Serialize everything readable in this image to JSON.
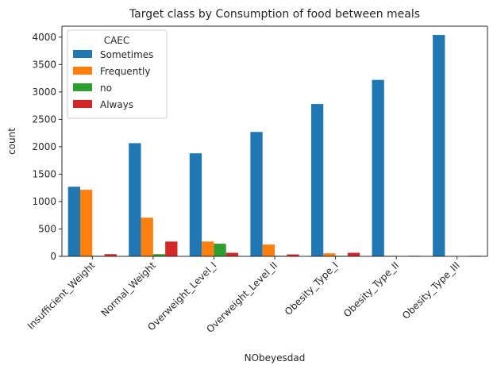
{
  "chart_data": {
    "type": "bar",
    "title": "Target class by Consumption of food between meals",
    "xlabel": "NObeyesdad",
    "ylabel": "count",
    "ylim": [
      0,
      4200
    ],
    "yticks": [
      0,
      500,
      1000,
      1500,
      2000,
      2500,
      3000,
      3500,
      4000
    ],
    "categories": [
      "Insufficient_Weight",
      "Normal_Weight",
      "Overweight_Level_I",
      "Overweight_Level_II",
      "Obesity_Type_I",
      "Obesity_Type_II",
      "Obesity_Type_III"
    ],
    "legend": {
      "title": "CAEC",
      "placement": "top-left"
    },
    "grid": false,
    "series": [
      {
        "name": "Sometimes",
        "color": "#1f77b4",
        "values": [
          1270,
          2065,
          1880,
          2270,
          2780,
          3220,
          4040
        ]
      },
      {
        "name": "Frequently",
        "color": "#ff7f0e",
        "values": [
          1215,
          705,
          270,
          215,
          55,
          10,
          5
        ]
      },
      {
        "name": "no",
        "color": "#2ca02c",
        "values": [
          10,
          40,
          230,
          10,
          10,
          5,
          0
        ]
      },
      {
        "name": "Always",
        "color": "#d62728",
        "values": [
          40,
          270,
          65,
          35,
          65,
          10,
          10
        ]
      }
    ]
  }
}
